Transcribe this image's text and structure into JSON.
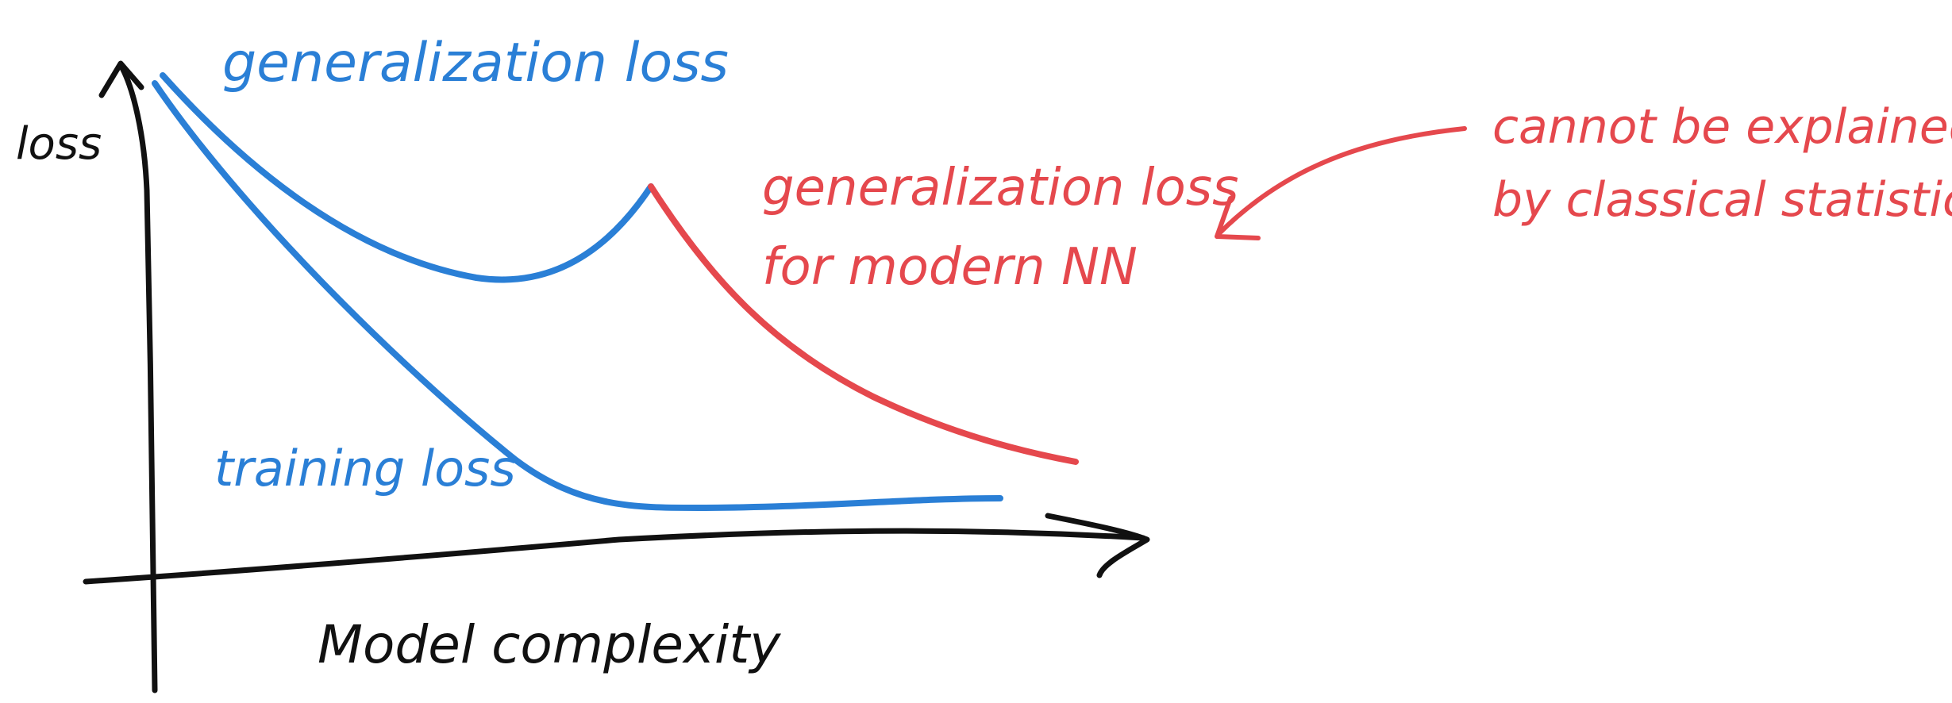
{
  "labels": {
    "y_axis": "loss",
    "x_axis": "Model complexity",
    "generalization": "generalization loss",
    "training": "training loss",
    "modern_line1": "generalization loss",
    "modern_line2": "for modern NN",
    "note_line1": "cannot be explained",
    "note_line2": "by classical statistics"
  },
  "colors": {
    "axis": "#111111",
    "classical": "#2a7fd6",
    "modern": "#e5484d"
  }
}
